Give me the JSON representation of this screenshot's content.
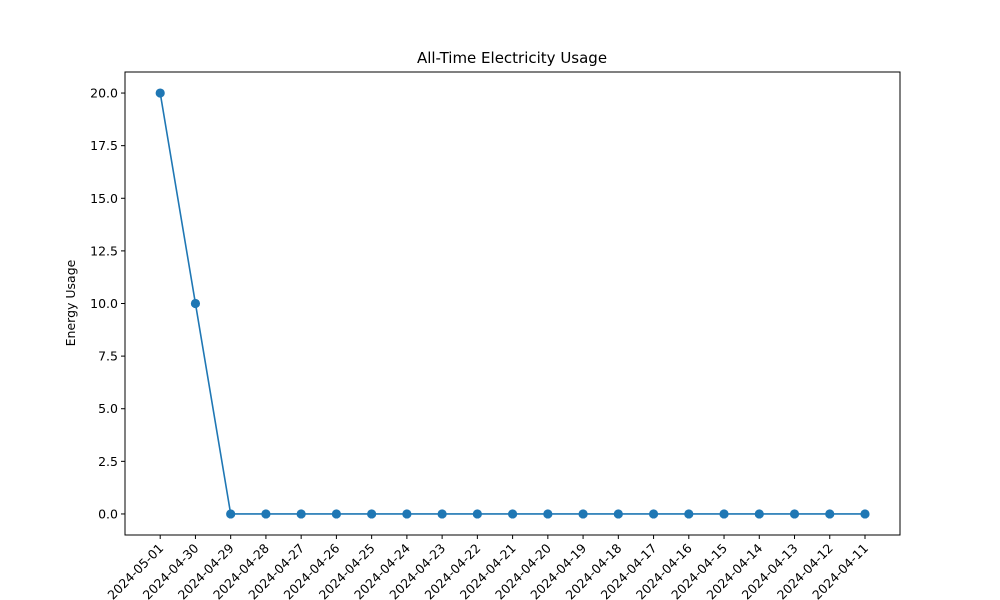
{
  "chart_data": {
    "type": "line",
    "title": "All-Time Electricity Usage",
    "xlabel": "",
    "ylabel": "Energy Usage",
    "categories": [
      "2024-05-01",
      "2024-04-30",
      "2024-04-29",
      "2024-04-28",
      "2024-04-27",
      "2024-04-26",
      "2024-04-25",
      "2024-04-24",
      "2024-04-23",
      "2024-04-22",
      "2024-04-21",
      "2024-04-20",
      "2024-04-19",
      "2024-04-18",
      "2024-04-17",
      "2024-04-16",
      "2024-04-15",
      "2024-04-14",
      "2024-04-13",
      "2024-04-12",
      "2024-04-11"
    ],
    "series": [
      {
        "values": [
          20,
          10,
          0,
          0,
          0,
          0,
          0,
          0,
          0,
          0,
          0,
          0,
          0,
          0,
          0,
          0,
          0,
          0,
          0,
          0,
          0
        ],
        "color": "#1f77b4"
      }
    ],
    "ylim": [
      -1,
      21
    ],
    "yticks": [
      "0.0",
      "2.5",
      "5.0",
      "7.5",
      "10.0",
      "12.5",
      "15.0",
      "17.5",
      "20.0"
    ],
    "grid": false,
    "markers": "circle"
  }
}
